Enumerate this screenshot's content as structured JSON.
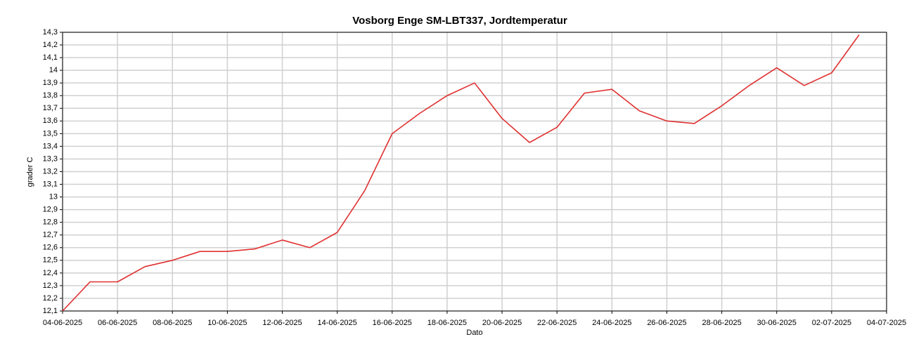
{
  "chart_data": {
    "type": "line",
    "title": "Vosborg Enge SM-LBT337, Jordtemperatur",
    "x_label": "Dato",
    "y_label": "grader C",
    "x": [
      "04-06-2025",
      "05-06-2025",
      "06-06-2025",
      "07-06-2025",
      "08-06-2025",
      "09-06-2025",
      "10-06-2025",
      "11-06-2025",
      "12-06-2025",
      "13-06-2025",
      "14-06-2025",
      "15-06-2025",
      "16-06-2025",
      "17-06-2025",
      "18-06-2025",
      "19-06-2025",
      "20-06-2025",
      "21-06-2025",
      "22-06-2025",
      "23-06-2025",
      "24-06-2025",
      "25-06-2025",
      "26-06-2025",
      "27-06-2025",
      "28-06-2025",
      "29-06-2025",
      "30-06-2025",
      "01-07-2025",
      "02-07-2025",
      "03-07-2025"
    ],
    "values": [
      12.1,
      12.33,
      12.33,
      12.45,
      12.5,
      12.57,
      12.57,
      12.59,
      12.66,
      12.6,
      12.72,
      13.05,
      13.5,
      13.66,
      13.8,
      13.9,
      13.62,
      13.43,
      13.55,
      13.82,
      13.85,
      13.68,
      13.6,
      13.58,
      13.72,
      13.88,
      14.02,
      13.88,
      13.98,
      14.28
    ],
    "color": "#e03030",
    "xlim": [
      "04-06-2025",
      "04-07-2025"
    ],
    "xticks": [
      "04-06-2025",
      "06-06-2025",
      "08-06-2025",
      "10-06-2025",
      "12-06-2025",
      "14-06-2025",
      "16-06-2025",
      "18-06-2025",
      "20-06-2025",
      "22-06-2025",
      "24-06-2025",
      "26-06-2025",
      "28-06-2025",
      "30-06-2025",
      "02-07-2025",
      "04-07-2025"
    ],
    "ylim": [
      12.1,
      14.3
    ],
    "yticks": [
      {
        "value": 12.1,
        "label": "12,1"
      },
      {
        "value": 12.2,
        "label": "12,2"
      },
      {
        "value": 12.3,
        "label": "12,3"
      },
      {
        "value": 12.4,
        "label": "12,4"
      },
      {
        "value": 12.5,
        "label": "12,5"
      },
      {
        "value": 12.6,
        "label": "12,6"
      },
      {
        "value": 12.7,
        "label": "12,7"
      },
      {
        "value": 12.8,
        "label": "12,8"
      },
      {
        "value": 12.9,
        "label": "12,9"
      },
      13,
      {
        "value": 13.1,
        "label": "13,1"
      },
      {
        "value": 13.2,
        "label": "13,2"
      },
      {
        "value": 13.3,
        "label": "13,3"
      },
      {
        "value": 13.4,
        "label": "13,4"
      },
      {
        "value": 13.5,
        "label": "13,5"
      },
      {
        "value": 13.6,
        "label": "13,6"
      },
      {
        "value": 13.7,
        "label": "13,7"
      },
      {
        "value": 13.8,
        "label": "13,8"
      },
      {
        "value": 13.9,
        "label": "13,9"
      },
      14,
      {
        "value": 14.1,
        "label": "14,1"
      },
      {
        "value": 14.2,
        "label": "14,2"
      },
      {
        "value": 14.3,
        "label": "14,3"
      }
    ],
    "grid": true
  }
}
